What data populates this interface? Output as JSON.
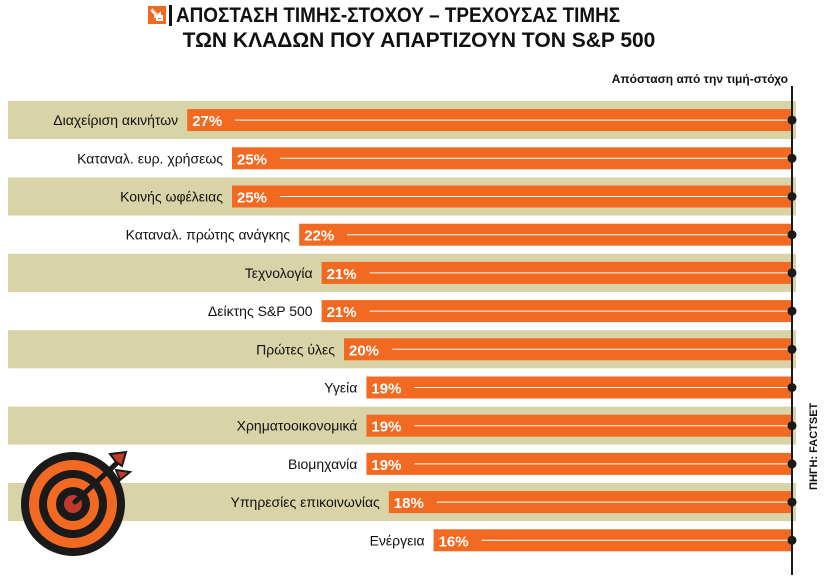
{
  "header": {
    "title_line1": "ΑΠΟΣΤΑΣΗ ΤΙΜΗΣ-ΣΤΟΧΟΥ – ΤΡΕΧΟΥΣΑΣ ΤΙΜΗΣ",
    "title_line2": "ΤΩΝ ΚΛΑΔΩΝ ΠΟΥ ΑΠΑΡΤΙΖΟΥΝ ΤΟΝ S&P 500"
  },
  "source": "ΠΗΓΗ: FACTSET",
  "colors": {
    "bar": "#f26a21",
    "band_dark": "#d8d4a8",
    "band_light": "#ffffff",
    "text": "#111111",
    "logo": "#f26a21"
  },
  "icons": {
    "logo": "arrow-logo-icon",
    "target": "target-arrow-icon"
  },
  "chart_data": {
    "type": "bar",
    "orientation": "horizontal",
    "axis_title": "Απόσταση από την τιμή-στόχο",
    "categories": [
      "Διαχείριση ακινήτων",
      "Καταναλ. ευρ. χρήσεως",
      "Κοινής ωφέλειας",
      "Καταναλ. πρώτης ανάγκης",
      "Τεχνολογία",
      "Δείκτης S&P 500",
      "Πρώτες ύλες",
      "Υγεία",
      "Χρηματοοικονομικά",
      "Βιομηχανία",
      "Υπηρεσίες επικοινωνίας",
      "Ενέργεια"
    ],
    "values": [
      27,
      25,
      25,
      22,
      21,
      21,
      20,
      19,
      19,
      19,
      18,
      16
    ],
    "value_labels": [
      "27%",
      "25%",
      "25%",
      "22%",
      "21%",
      "21%",
      "20%",
      "19%",
      "19%",
      "19%",
      "18%",
      "16%"
    ],
    "unit": "%",
    "grid": false,
    "legend": "none"
  }
}
